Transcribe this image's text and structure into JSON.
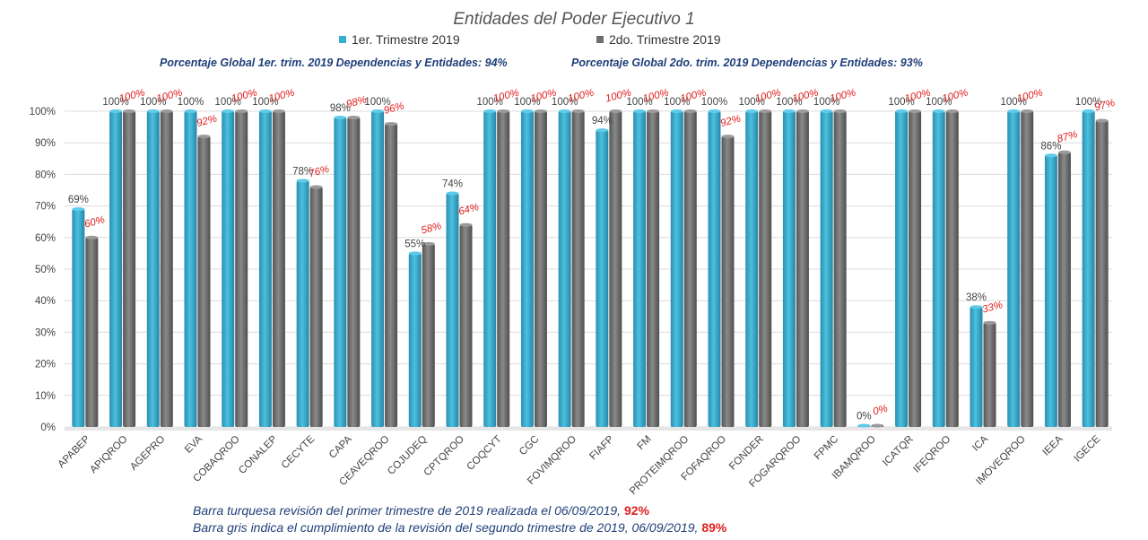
{
  "chart_data": {
    "type": "bar",
    "title": "Entidades del Poder Ejecutivo 1",
    "categories": [
      "APABEP",
      "APIQROO",
      "AGEPRO",
      "EVA",
      "COBAQROO",
      "CONALEP",
      "CECYTE",
      "CAPA",
      "CEAVEQROO",
      "COJUDEQ",
      "CPTQROO",
      "COQCYT",
      "CGC",
      "FOVIMQROO",
      "FIAFP",
      "FM",
      "PROTEIMQROO",
      "FOFAQROO",
      "FONDER",
      "FOGARQROO",
      "FPMC",
      "IBAMQROO",
      "ICATQR",
      "IFEQROO",
      "ICA",
      "IMOVEQROO",
      "IEEA",
      "IGECE"
    ],
    "series": [
      {
        "name": "1er. Trimestre 2019",
        "color": "#3aaed0",
        "values": [
          69,
          100,
          100,
          100,
          100,
          100,
          78,
          98,
          100,
          55,
          74,
          100,
          100,
          100,
          94,
          100,
          100,
          100,
          100,
          100,
          100,
          0,
          100,
          100,
          38,
          100,
          86,
          100
        ],
        "labels": [
          "69%",
          "100%",
          "100%",
          "100%",
          "100%",
          "100%",
          "78%",
          "98%",
          "100%",
          "55%",
          "74%",
          "100%",
          "100%",
          "100%",
          "94%",
          "100%",
          "100%",
          "100%",
          "100%",
          "100%",
          "100%",
          "0%",
          "100%",
          "100%",
          "38%",
          "100%",
          "86%",
          "100%"
        ]
      },
      {
        "name": "2do. Trimestre 2019",
        "color": "#6e6e6e",
        "values": [
          60,
          100,
          100,
          92,
          100,
          100,
          76,
          98,
          96,
          58,
          64,
          100,
          100,
          100,
          100,
          100,
          100,
          92,
          100,
          100,
          100,
          0,
          100,
          100,
          33,
          100,
          87,
          97
        ],
        "labels": [
          "60%",
          "100%",
          "100%",
          "92%",
          "100%",
          "100%",
          "76%",
          "98%",
          "96%",
          "58%",
          "64%",
          "100%",
          "100%",
          "100%",
          "100%",
          "100%",
          "100%",
          "92%",
          "100%",
          "100%",
          "100%",
          "0%",
          "100%",
          "100%",
          "33%",
          "100%",
          "87%",
          "97%"
        ]
      }
    ],
    "ylim": [
      0,
      100
    ],
    "yticks": [
      "0%",
      "10%",
      "20%",
      "30%",
      "40%",
      "50%",
      "60%",
      "70%",
      "80%",
      "90%",
      "100%"
    ],
    "grid": true,
    "legend_position": "top",
    "global_note_1": "Porcentaje Global 1er. trim. 2019 Dependencias y Entidades: 94%",
    "global_note_2": "Porcentaje Global  2do. trim.  2019 Dependencias y Entidades: 93%",
    "footer": [
      {
        "text": "Barra turquesa revisión del primer trimestre de 2019 realizada el  06/09/2019, ",
        "pct": "92%"
      },
      {
        "text": "Barra gris indica el cumplimiento de la revisión del segundo trimestre de 2019,  06/09/2019, ",
        "pct": "89%"
      }
    ]
  }
}
